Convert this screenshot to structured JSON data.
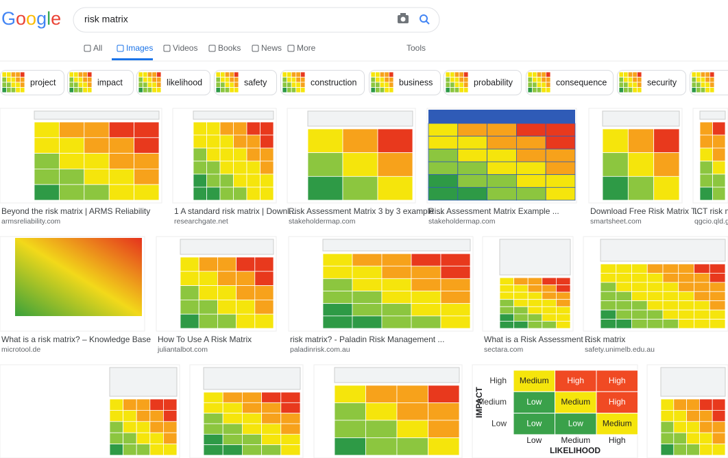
{
  "logo": "Google",
  "search": {
    "query": "risk matrix"
  },
  "tabs": [
    "All",
    "Images",
    "Videos",
    "Books",
    "News",
    "More"
  ],
  "tools": "Tools",
  "chips": [
    "project",
    "impact",
    "likelihood",
    "safety",
    "construction",
    "business",
    "probability",
    "consequence",
    "security"
  ],
  "results": [
    {
      "caption": "Beyond the risk matrix | ARMS Reliability",
      "source": "armsreliability.com"
    },
    {
      "caption": "1 A standard risk matrix | Downl...",
      "source": "researchgate.net"
    },
    {
      "caption": "Risk Assessment Matrix 3 by 3 example ...",
      "source": "stakeholdermap.com"
    },
    {
      "caption": "Risk Assessment Matrix Example ...",
      "source": "stakeholdermap.com"
    },
    {
      "caption": "Download Free Risk Matrix T...",
      "source": "smartsheet.com"
    },
    {
      "caption": "ICT risk ma...",
      "source": "qgcio.qld.go..."
    },
    {
      "caption": "What is a risk matrix? – Knowledge Base",
      "source": "microtool.de"
    },
    {
      "caption": "How To Use A Risk Matrix",
      "source": "juliantalbot.com"
    },
    {
      "caption": "risk matrix? - Paladin Risk Management ...",
      "source": "paladinrisk.com.au"
    },
    {
      "caption": "What is a Risk Assessment ...",
      "source": "sectara.com"
    },
    {
      "caption": "Risk matrix",
      "source": "safety.unimelb.edu.au"
    }
  ],
  "matrix": {
    "axis_y": "IMPACT",
    "axis_x": "LIKELIHOOD",
    "rows": [
      "High",
      "Medium",
      "Low"
    ],
    "cols": [
      "Low",
      "Medium",
      "High"
    ],
    "cells": [
      [
        "Medium",
        "High",
        "High"
      ],
      [
        "Low",
        "Medium",
        "High"
      ],
      [
        "Low",
        "Low",
        "Medium"
      ]
    ]
  }
}
